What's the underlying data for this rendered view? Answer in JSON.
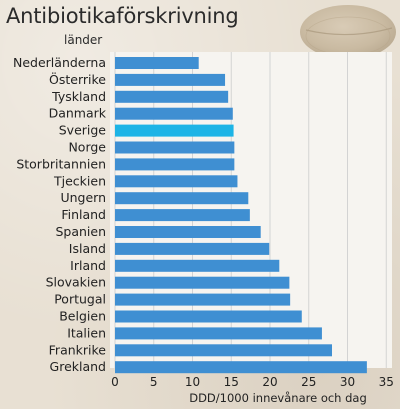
{
  "chart_data": {
    "type": "bar",
    "orientation": "horizontal",
    "title": "Antibiotikaförskrivning",
    "category_axis_label": "länder",
    "xlabel": "DDD/1000 innevånare och dag",
    "categories": [
      "Nederländerna",
      "Österrike",
      "Tyskland",
      "Danmark",
      "Sverige",
      "Norge",
      "Storbritannien",
      "Tjeckien",
      "Ungern",
      "Finland",
      "Spanien",
      "Island",
      "Irland",
      "Slovakien",
      "Portugal",
      "Belgien",
      "Italien",
      "Frankrike",
      "Grekland"
    ],
    "values": [
      10.8,
      14.2,
      14.6,
      15.2,
      15.3,
      15.4,
      15.4,
      15.8,
      17.2,
      17.4,
      18.8,
      19.9,
      21.2,
      22.5,
      22.6,
      24.1,
      26.7,
      28.0,
      32.5
    ],
    "highlight": "Sverige",
    "xlim": [
      0,
      35
    ],
    "xticks": [
      0,
      5,
      10,
      15,
      20,
      25,
      30,
      35
    ],
    "grid": true,
    "colors": {
      "bar": "#3f8fd2",
      "bar_highlight": "#1db4e6",
      "plot_background": "#f6f4f0",
      "grid": "#d3d3d3"
    }
  }
}
